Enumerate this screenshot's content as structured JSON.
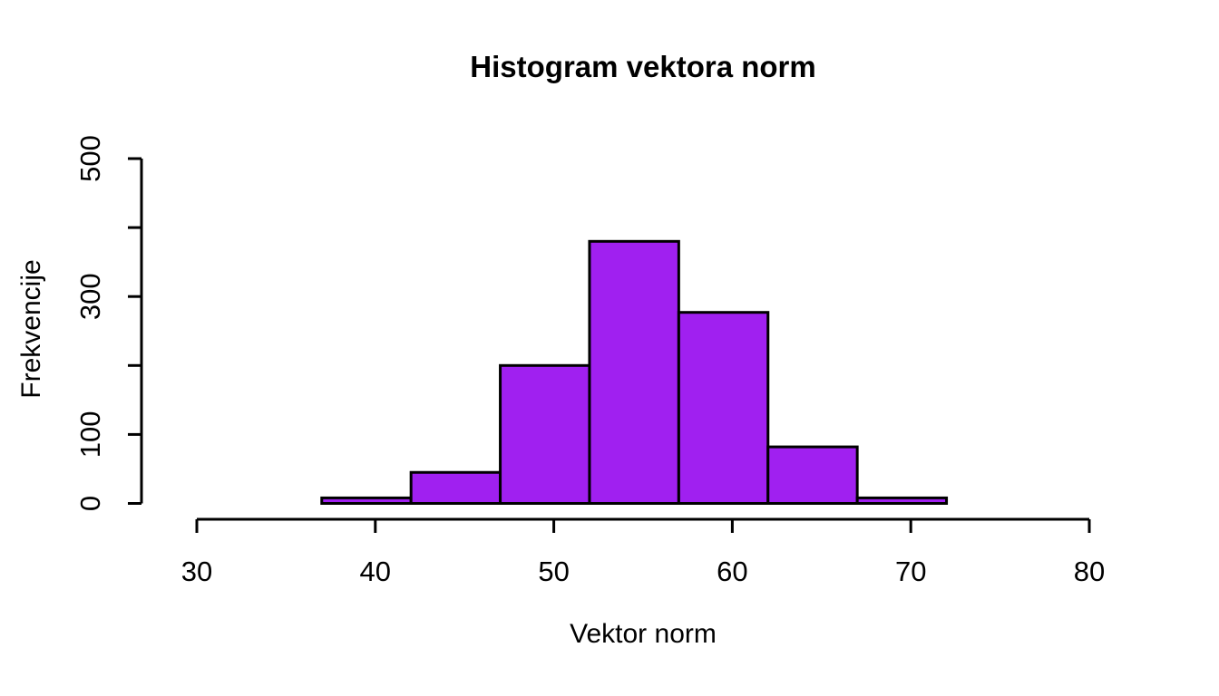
{
  "chart_data": {
    "type": "bar",
    "subtype": "histogram",
    "title": "Histogram vektora norm",
    "xlabel": "Vektor norm",
    "ylabel": "Frekvencije",
    "bins": {
      "breaks": [
        37,
        42,
        47,
        52,
        57,
        62,
        67,
        72
      ],
      "counts": [
        8,
        45,
        200,
        380,
        277,
        82,
        8
      ]
    },
    "xlim": [
      30,
      80
    ],
    "ylim": [
      0,
      500
    ],
    "x_ticks": [
      30,
      40,
      50,
      60,
      70,
      80
    ],
    "x_tick_labels": [
      "30",
      "40",
      "50",
      "60",
      "70",
      "80"
    ],
    "y_ticks": [
      0,
      100,
      200,
      300,
      400,
      500
    ],
    "y_tick_labels": [
      "0",
      "100",
      "",
      "300",
      "",
      "500"
    ],
    "grid": false,
    "legend": null,
    "colors": {
      "bar_fill": "#A020F0",
      "bar_border": "#000000",
      "axis": "#000000",
      "text": "#000000",
      "background": "#FFFFFF"
    }
  }
}
